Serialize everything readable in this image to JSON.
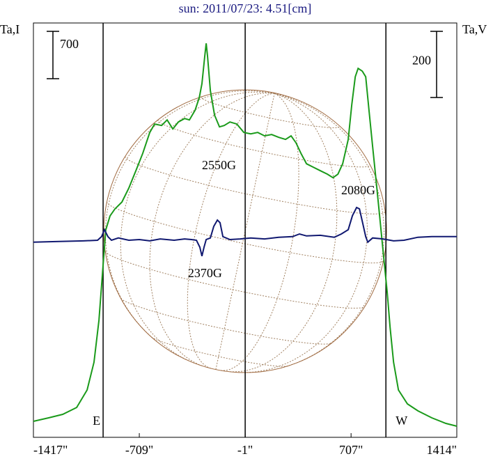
{
  "chart_data": {
    "type": "line",
    "title": "sun: 2011/07/23: 4.51[cm]",
    "ylabel": "Ta,I",
    "y2label": "Ta,V",
    "xlim": [
      -1417,
      1414
    ],
    "ylim": [
      0,
      6125
    ],
    "y2lim": [
      -592,
      661
    ],
    "xticks": [
      {
        "value": -1417,
        "label": "-1417\""
      },
      {
        "value": -709,
        "label": "-709\""
      },
      {
        "value": -1,
        "label": "-1\""
      },
      {
        "value": 707,
        "label": "707\""
      },
      {
        "value": 1414,
        "label": "1414\""
      }
    ],
    "y_scale_bar": 700,
    "y2_scale_bar": 200,
    "vlines": [
      -951,
      -1,
      940
    ],
    "limb_labels": [
      "E",
      "W"
    ],
    "annotations": [
      {
        "text": "2550G",
        "x": -176,
        "y": 227
      },
      {
        "text": "2370G",
        "x": -270,
        "y": -99
      },
      {
        "text": "2080G",
        "x": 755,
        "y": 152
      }
    ],
    "series": [
      {
        "name": "I",
        "color": "#1a9a1a",
        "x": [
          -1417,
          -1315,
          -1221,
          -1128,
          -1058,
          -1012,
          -979,
          -951,
          -933,
          -905,
          -872,
          -825,
          -779,
          -732,
          -686,
          -639,
          -607,
          -560,
          -523,
          -485,
          -448,
          -406,
          -374,
          -336,
          -308,
          -290,
          -271,
          -262,
          -253,
          -234,
          -206,
          -173,
          -141,
          -103,
          -57,
          -10,
          36,
          83,
          129,
          176,
          223,
          269,
          306,
          339,
          372,
          409,
          455,
          502,
          549,
          586,
          619,
          651,
          688,
          712,
          735,
          754,
          782,
          805,
          828,
          851,
          875,
          898,
          921,
          949,
          968,
          991,
          1024,
          1084,
          1154,
          1247,
          1341,
          1414
        ],
        "values": [
          237,
          288,
          340,
          442,
          700,
          1111,
          1729,
          2552,
          3066,
          3272,
          3375,
          3478,
          3684,
          3941,
          4198,
          4507,
          4631,
          4610,
          4692,
          4558,
          4661,
          4713,
          4692,
          4836,
          5022,
          5227,
          5639,
          5824,
          5639,
          5124,
          4764,
          4589,
          4610,
          4661,
          4631,
          4507,
          4486,
          4507,
          4456,
          4476,
          4435,
          4404,
          4456,
          4353,
          4198,
          4044,
          3993,
          3941,
          3890,
          3838,
          3890,
          4044,
          4404,
          4919,
          5330,
          5454,
          5413,
          5330,
          4816,
          4301,
          3787,
          3272,
          2758,
          2140,
          1626,
          1111,
          700,
          494,
          391,
          288,
          206,
          165
        ]
      },
      {
        "name": "V",
        "color": "#101870",
        "axis": "y2",
        "x": [
          -1417,
          -1268,
          -1082,
          -988,
          -961,
          -942,
          -919,
          -895,
          -849,
          -779,
          -709,
          -639,
          -569,
          -476,
          -406,
          -360,
          -327,
          -304,
          -290,
          -276,
          -262,
          -234,
          -211,
          -187,
          -169,
          -150,
          -103,
          -34,
          36,
          129,
          223,
          316,
          362,
          409,
          502,
          595,
          642,
          688,
          716,
          744,
          763,
          782,
          805,
          819,
          851,
          921,
          991,
          1061,
          1154,
          1247,
          1414
        ],
        "values": [
          -2,
          0,
          2,
          4,
          15,
          36,
          15,
          4,
          11,
          4,
          6,
          2,
          8,
          4,
          8,
          6,
          4,
          -17,
          -44,
          -17,
          6,
          11,
          46,
          65,
          57,
          15,
          6,
          8,
          11,
          8,
          13,
          15,
          23,
          17,
          19,
          13,
          23,
          36,
          78,
          103,
          99,
          61,
          15,
          -2,
          11,
          8,
          2,
          4,
          13,
          15,
          15
        ]
      }
    ]
  }
}
